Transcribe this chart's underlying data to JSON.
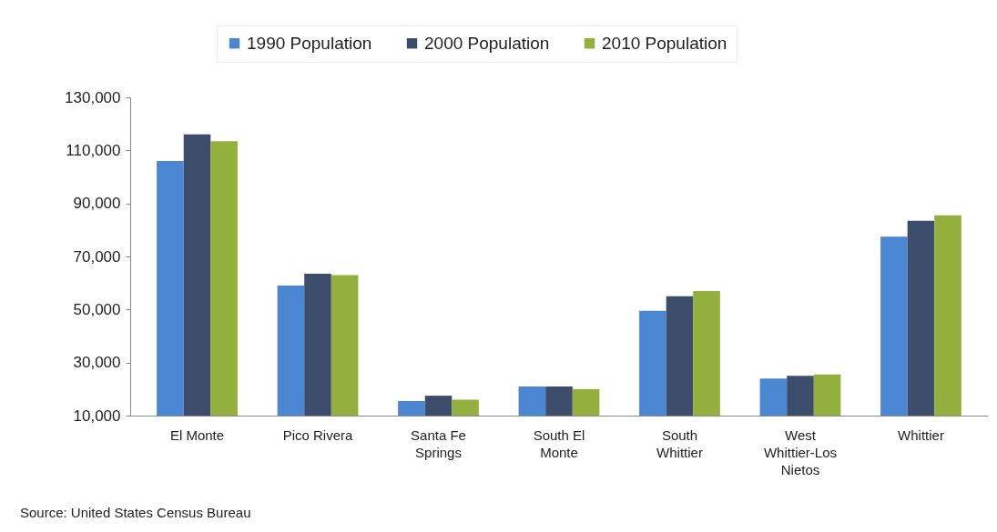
{
  "chart_data": {
    "type": "bar",
    "categories": [
      "El Monte",
      "Pico Rivera",
      "Santa Fe Springs",
      "South El Monte",
      "South Whittier",
      "West Whittier-Los Nietos",
      "Whittier"
    ],
    "series": [
      {
        "name": "1990 Population",
        "color": "#4a86d1",
        "values": [
          106000,
          59000,
          15500,
          21000,
          49500,
          24000,
          77500
        ]
      },
      {
        "name": "2000 Population",
        "color": "#3c4d6b",
        "values": [
          116000,
          63500,
          17500,
          21000,
          55000,
          25000,
          83500
        ]
      },
      {
        "name": "2010 Population",
        "color": "#93b03e",
        "values": [
          113500,
          63000,
          16000,
          20000,
          57000,
          25500,
          85500
        ]
      }
    ],
    "ylim": [
      10000,
      130000
    ],
    "yticks": [
      {
        "value": 10000,
        "label": "10,000"
      },
      {
        "value": 30000,
        "label": "30,000"
      },
      {
        "value": 50000,
        "label": "50,000"
      },
      {
        "value": 70000,
        "label": "70,000"
      },
      {
        "value": 90000,
        "label": "90,000"
      },
      {
        "value": 110000,
        "label": "110,000"
      },
      {
        "value": 130000,
        "label": "130,000"
      }
    ],
    "legend": "top",
    "annotations": [
      "Source: United States Census Bureau"
    ]
  }
}
